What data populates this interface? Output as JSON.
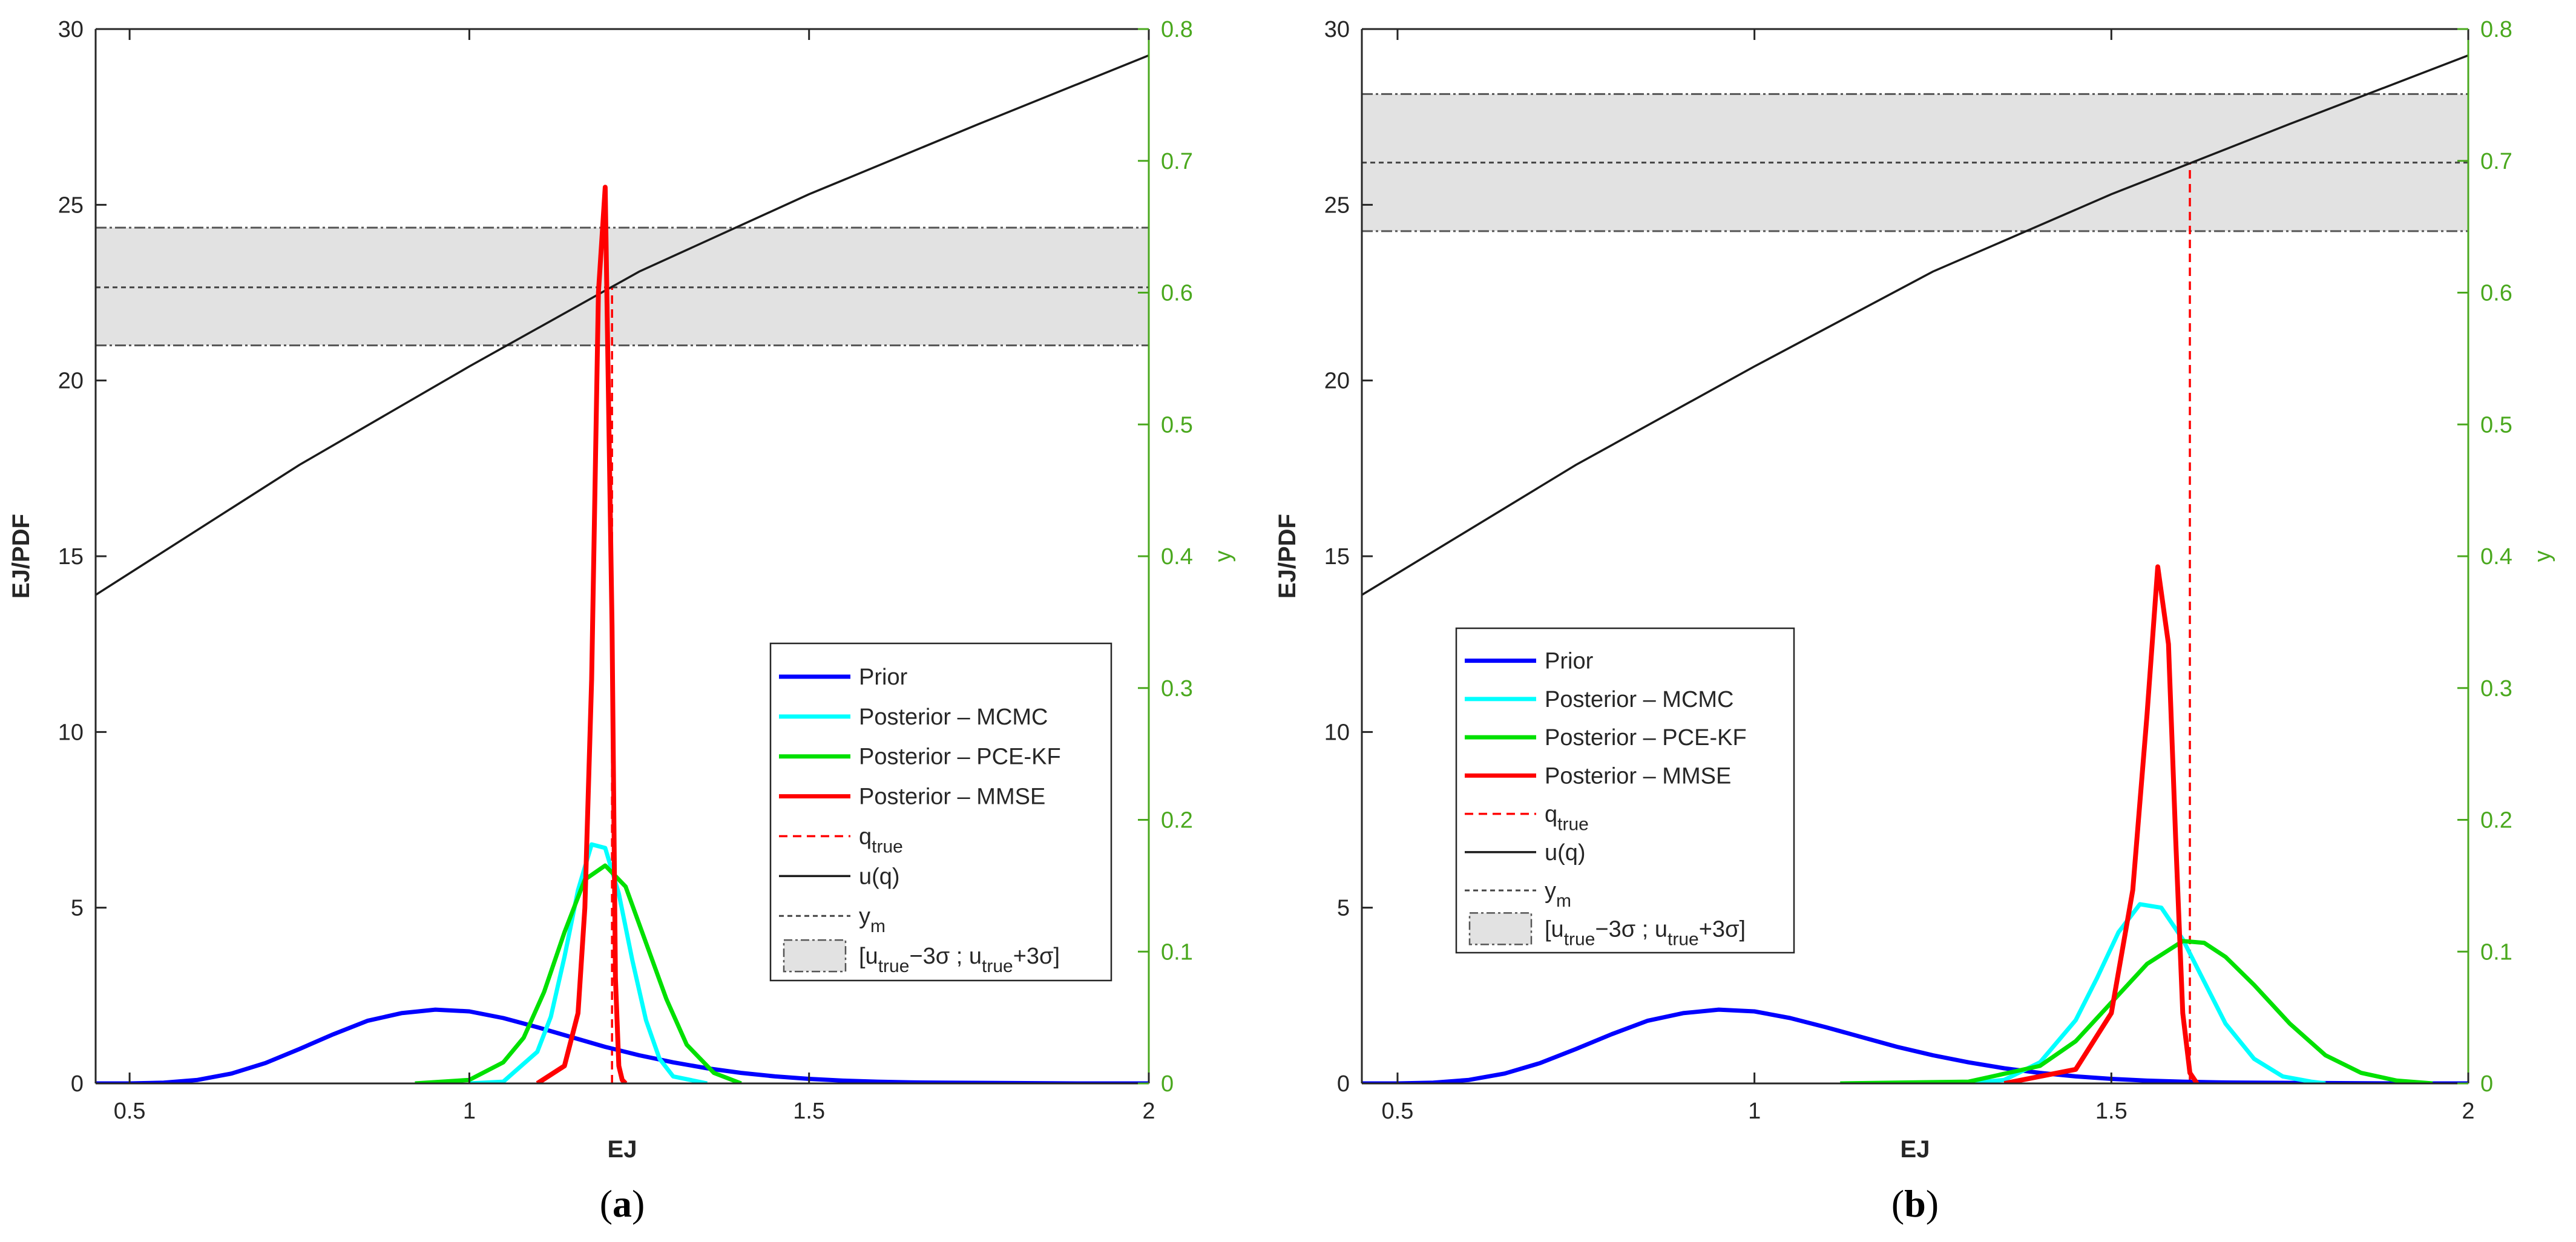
{
  "chart_data": [
    {
      "type": "line",
      "panel_label": {
        "open": "(",
        "letter": "a",
        "close": ")"
      },
      "xlabel": "EJ",
      "ylabel_left": "EJ/PDF",
      "ylabel_right": "y",
      "xlim": [
        0.45,
        2.0
      ],
      "ylim_left": [
        0,
        30
      ],
      "ylim_right": [
        0,
        0.8
      ],
      "xticks": [
        0.5,
        1,
        1.5,
        2
      ],
      "xtick_labels": [
        "0.5",
        "1",
        "1.5",
        "2"
      ],
      "yticks_left": [
        0,
        5,
        10,
        15,
        20,
        25,
        30
      ],
      "ytick_labels_left": [
        "0",
        "5",
        "10",
        "15",
        "20",
        "25",
        "30"
      ],
      "yticks_right": [
        0,
        0.1,
        0.2,
        0.3,
        0.4,
        0.5,
        0.6,
        0.7,
        0.8
      ],
      "ytick_labels_right": [
        "0",
        "0.1",
        "0.2",
        "0.3",
        "0.4",
        "0.5",
        "0.6",
        "0.7",
        "0.8"
      ],
      "legend_position": "lower-right",
      "band": {
        "lower": 21.0,
        "upper": 24.35
      },
      "ym": 22.65,
      "q_true": 1.21,
      "u_of_q": {
        "x": [
          0.45,
          0.75,
          1.0,
          1.25,
          1.5,
          1.75,
          2.0
        ],
        "y": [
          13.9,
          17.6,
          20.4,
          23.1,
          25.3,
          27.3,
          29.25
        ]
      },
      "series": [
        {
          "name": "Prior",
          "color": "#0000ff",
          "x": [
            0.45,
            0.5,
            0.55,
            0.6,
            0.65,
            0.7,
            0.75,
            0.8,
            0.85,
            0.9,
            0.95,
            1.0,
            1.05,
            1.1,
            1.15,
            1.2,
            1.25,
            1.3,
            1.35,
            1.4,
            1.45,
            1.5,
            1.55,
            1.6,
            1.65,
            1.7,
            1.8,
            1.9,
            2.0
          ],
          "y": [
            0.0,
            0.0,
            0.02,
            0.1,
            0.28,
            0.58,
            0.98,
            1.4,
            1.78,
            2.0,
            2.1,
            2.05,
            1.86,
            1.6,
            1.32,
            1.04,
            0.8,
            0.6,
            0.43,
            0.3,
            0.2,
            0.13,
            0.08,
            0.05,
            0.03,
            0.02,
            0.01,
            0.0,
            0.0
          ]
        },
        {
          "name": "Posterior – MCMC",
          "color": "#00ffff",
          "x": [
            1.0,
            1.05,
            1.1,
            1.12,
            1.14,
            1.16,
            1.18,
            1.2,
            1.22,
            1.24,
            1.26,
            1.28,
            1.3,
            1.35
          ],
          "y": [
            0.0,
            0.05,
            0.9,
            1.9,
            3.6,
            5.5,
            6.8,
            6.7,
            5.4,
            3.5,
            1.8,
            0.7,
            0.2,
            0.0
          ]
        },
        {
          "name": "Posterior – PCE-KF",
          "color": "#00e000",
          "x": [
            0.92,
            1.0,
            1.05,
            1.08,
            1.11,
            1.14,
            1.17,
            1.2,
            1.23,
            1.26,
            1.29,
            1.32,
            1.36,
            1.4
          ],
          "y": [
            0.0,
            0.1,
            0.6,
            1.3,
            2.6,
            4.3,
            5.8,
            6.2,
            5.6,
            4.0,
            2.4,
            1.1,
            0.3,
            0.0
          ]
        },
        {
          "name": "Posterior – MMSE",
          "color": "#ff0000",
          "x": [
            1.1,
            1.14,
            1.16,
            1.17,
            1.18,
            1.19,
            1.2,
            1.21,
            1.215,
            1.22,
            1.225,
            1.23
          ],
          "y": [
            0.0,
            0.5,
            2.0,
            5.0,
            11.5,
            22.5,
            25.5,
            13.0,
            3.0,
            0.5,
            0.1,
            0.0
          ]
        }
      ],
      "legend": [
        {
          "label": "Prior"
        },
        {
          "label": "Posterior – MCMC"
        },
        {
          "label": "Posterior – PCE-KF"
        },
        {
          "label": "Posterior – MMSE"
        },
        {
          "label": "q",
          "sub": "true"
        },
        {
          "label": "u(q)"
        },
        {
          "label": "y",
          "sub": "m"
        },
        {
          "label": "[u",
          "sub": "true",
          "mid": "−3σ ; u",
          "sub2": "true",
          "tail": "+3σ]"
        }
      ]
    },
    {
      "type": "line",
      "panel_label": {
        "open": "(",
        "letter": "b",
        "close": ")"
      },
      "xlabel": "EJ",
      "ylabel_left": "EJ/PDF",
      "ylabel_right": "y",
      "xlim": [
        0.45,
        2.0
      ],
      "ylim_left": [
        0,
        30
      ],
      "ylim_right": [
        0,
        0.8
      ],
      "xticks": [
        0.5,
        1,
        1.5,
        2
      ],
      "xtick_labels": [
        "0.5",
        "1",
        "1.5",
        "2"
      ],
      "yticks_left": [
        0,
        5,
        10,
        15,
        20,
        25,
        30
      ],
      "ytick_labels_left": [
        "0",
        "5",
        "10",
        "15",
        "20",
        "25",
        "30"
      ],
      "yticks_right": [
        0,
        0.1,
        0.2,
        0.3,
        0.4,
        0.5,
        0.6,
        0.7,
        0.8
      ],
      "ytick_labels_right": [
        "0",
        "0.1",
        "0.2",
        "0.3",
        "0.4",
        "0.5",
        "0.6",
        "0.7",
        "0.8"
      ],
      "legend_position": "lower-left",
      "band": {
        "lower": 24.25,
        "upper": 28.15
      },
      "ym": 26.2,
      "q_true": 1.61,
      "u_of_q": {
        "x": [
          0.45,
          0.75,
          1.0,
          1.25,
          1.5,
          1.75,
          2.0
        ],
        "y": [
          13.9,
          17.6,
          20.4,
          23.1,
          25.3,
          27.3,
          29.25
        ]
      },
      "series": [
        {
          "name": "Prior",
          "color": "#0000ff",
          "x": [
            0.45,
            0.5,
            0.55,
            0.6,
            0.65,
            0.7,
            0.75,
            0.8,
            0.85,
            0.9,
            0.95,
            1.0,
            1.05,
            1.1,
            1.15,
            1.2,
            1.25,
            1.3,
            1.35,
            1.4,
            1.45,
            1.5,
            1.55,
            1.6,
            1.65,
            1.7,
            1.8,
            1.9,
            2.0
          ],
          "y": [
            0.0,
            0.0,
            0.02,
            0.1,
            0.28,
            0.58,
            0.98,
            1.4,
            1.78,
            2.0,
            2.1,
            2.05,
            1.86,
            1.6,
            1.32,
            1.04,
            0.8,
            0.6,
            0.43,
            0.3,
            0.2,
            0.13,
            0.08,
            0.05,
            0.03,
            0.02,
            0.01,
            0.0,
            0.0
          ]
        },
        {
          "name": "Posterior – MCMC",
          "color": "#00ffff",
          "x": [
            1.3,
            1.35,
            1.4,
            1.45,
            1.48,
            1.51,
            1.54,
            1.57,
            1.6,
            1.63,
            1.66,
            1.7,
            1.74,
            1.78,
            1.8
          ],
          "y": [
            0.0,
            0.1,
            0.6,
            1.8,
            3.0,
            4.3,
            5.1,
            5.0,
            4.1,
            2.9,
            1.7,
            0.7,
            0.2,
            0.05,
            0.0
          ]
        },
        {
          "name": "Posterior – PCE-KF",
          "color": "#00e000",
          "x": [
            1.12,
            1.3,
            1.4,
            1.45,
            1.5,
            1.55,
            1.6,
            1.63,
            1.66,
            1.7,
            1.75,
            1.8,
            1.85,
            1.9,
            1.95
          ],
          "y": [
            0.0,
            0.05,
            0.5,
            1.2,
            2.3,
            3.4,
            4.05,
            4.0,
            3.6,
            2.8,
            1.7,
            0.8,
            0.3,
            0.08,
            0.0
          ]
        },
        {
          "name": "Posterior – MMSE",
          "color": "#ff0000",
          "x": [
            1.35,
            1.45,
            1.5,
            1.53,
            1.55,
            1.565,
            1.58,
            1.59,
            1.6,
            1.61,
            1.62
          ],
          "y": [
            0.0,
            0.4,
            2.0,
            5.5,
            10.5,
            14.7,
            12.5,
            7.0,
            2.0,
            0.3,
            0.0
          ]
        }
      ],
      "legend": [
        {
          "label": "Prior"
        },
        {
          "label": "Posterior – MCMC"
        },
        {
          "label": "Posterior – PCE-KF"
        },
        {
          "label": "Posterior – MMSE"
        },
        {
          "label": "q",
          "sub": "true"
        },
        {
          "label": "u(q)"
        },
        {
          "label": "y",
          "sub": "m"
        },
        {
          "label": "[u",
          "sub": "true",
          "mid": "−3σ ; u",
          "sub2": "true",
          "tail": "+3σ]"
        }
      ]
    }
  ]
}
